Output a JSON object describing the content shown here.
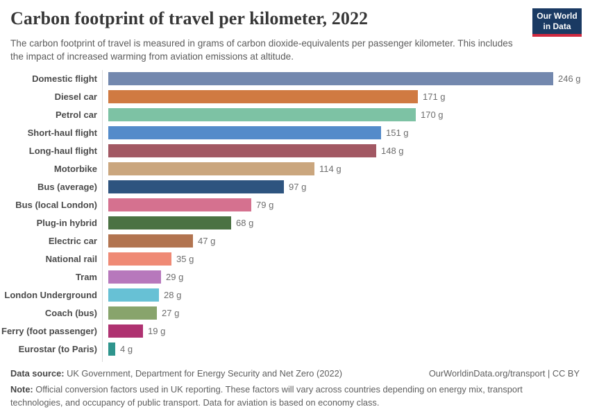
{
  "header": {
    "title": "Carbon footprint of travel per kilometer, 2022",
    "subtitle": "The carbon footprint of travel is measured in grams of carbon dioxide-equivalents per passenger kilometer. This includes the impact of increased warming from aviation emissions at altitude.",
    "logo": {
      "line1": "Our World",
      "line2": "in Data",
      "bg_color": "#1a3a63",
      "stripe_color": "#d0293f"
    }
  },
  "chart_data": {
    "type": "bar",
    "orientation": "horizontal",
    "title": "Carbon footprint of travel per kilometer, 2022",
    "xlabel": "",
    "ylabel": "",
    "unit": "grams CO2-equivalents per passenger km",
    "xlim": [
      0,
      246
    ],
    "grid": false,
    "legend": "none",
    "categories": [
      "Domestic flight",
      "Diesel car",
      "Petrol car",
      "Short-haul flight",
      "Long-haul flight",
      "Motorbike",
      "Bus (average)",
      "Bus (local London)",
      "Plug-in hybrid",
      "Electric car",
      "National rail",
      "Tram",
      "London Underground",
      "Coach (bus)",
      "Ferry (foot passenger)",
      "Eurostar (to Paris)"
    ],
    "values": [
      246,
      171,
      170,
      151,
      148,
      114,
      97,
      79,
      68,
      47,
      35,
      29,
      28,
      27,
      19,
      4
    ],
    "value_labels": [
      "246 g",
      "171 g",
      "170 g",
      "151 g",
      "148 g",
      "114 g",
      "97 g",
      "79 g",
      "68 g",
      "47 g",
      "35 g",
      "29 g",
      "28 g",
      "27 g",
      "19 g",
      "4 g"
    ],
    "colors": [
      "#7388ae",
      "#d07a42",
      "#7dc2a4",
      "#548bca",
      "#a25863",
      "#caa67e",
      "#2e547f",
      "#d5718f",
      "#4b7243",
      "#b27450",
      "#ef8a75",
      "#b778bc",
      "#67c1d5",
      "#88a46c",
      "#af3271",
      "#2f958d"
    ],
    "axis_color": "#d9d9d9"
  },
  "footer": {
    "source_label": "Data source:",
    "source_text": " UK Government, Department for Energy Security and Net Zero (2022)",
    "credit": "OurWorldinData.org/transport | CC BY",
    "note_label": "Note:",
    "note_text": " Official conversion factors used in UK reporting. These factors will vary across countries depending on energy mix, transport technologies, and occupancy of public transport. Data for aviation is based on economy class."
  }
}
